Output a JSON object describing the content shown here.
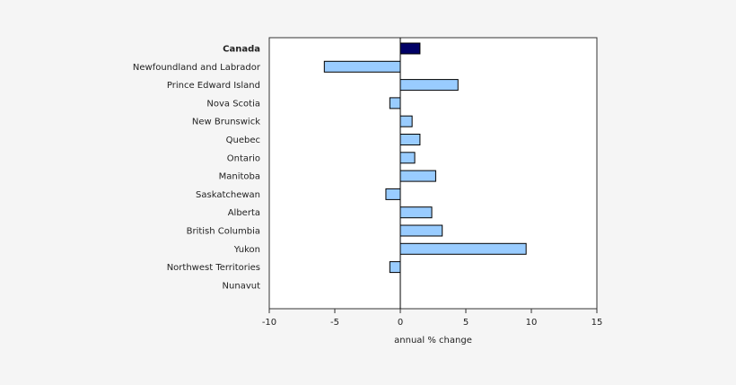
{
  "chart_data": {
    "type": "bar",
    "orientation": "horizontal",
    "categories": [
      "Canada",
      "Newfoundland and Labrador",
      "Prince Edward Island",
      "Nova Scotia",
      "New Brunswick",
      "Quebec",
      "Ontario",
      "Manitoba",
      "Saskatchewan",
      "Alberta",
      "British Columbia",
      "Yukon",
      "Northwest Territories",
      "Nunavut"
    ],
    "values": [
      1.5,
      -5.8,
      4.4,
      -0.8,
      0.9,
      1.5,
      1.1,
      2.7,
      -1.1,
      2.4,
      3.2,
      9.6,
      -0.8,
      0
    ],
    "xlabel": "annual % change",
    "xlim": [
      -10,
      15
    ],
    "xticks": [
      -10,
      -5,
      0,
      5,
      10,
      15
    ],
    "xtick_labels": [
      "-10",
      "-5",
      "0",
      "5",
      "10",
      "15"
    ],
    "highlight_category": "Canada",
    "colors": {
      "highlight": "#000066",
      "bar": "#99ccff",
      "border": "#000000",
      "plot_background": "#ffffff",
      "page_background": "#f5f5f5"
    },
    "grid": false,
    "legend": "none"
  }
}
